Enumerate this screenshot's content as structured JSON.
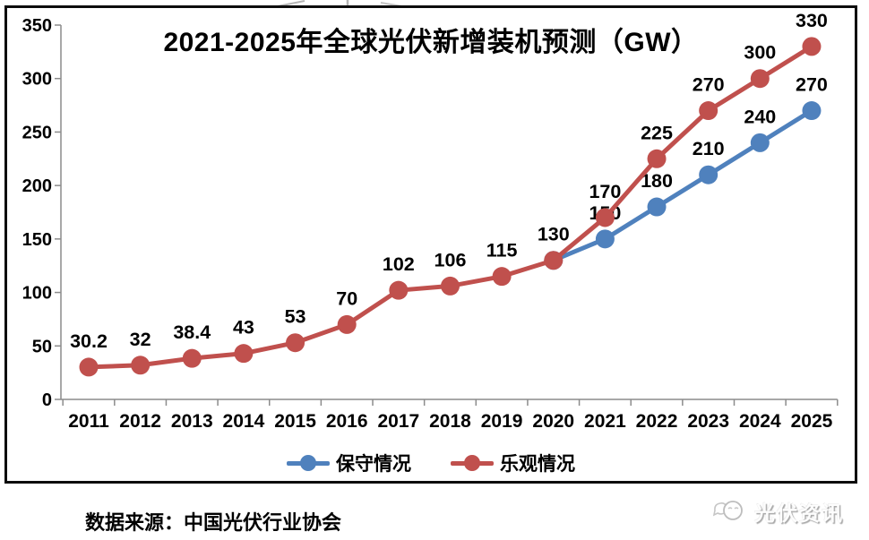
{
  "chart_data": {
    "type": "line",
    "title": "2021-2025年全球光伏新增装机预测（GW）",
    "categories": [
      "2011",
      "2012",
      "2013",
      "2014",
      "2015",
      "2016",
      "2017",
      "2018",
      "2019",
      "2020",
      "2021",
      "2022",
      "2023",
      "2024",
      "2025"
    ],
    "series": [
      {
        "name": "保守情况",
        "color": "#4F81BD",
        "values": [
          null,
          null,
          null,
          null,
          null,
          null,
          null,
          null,
          null,
          130,
          150,
          180,
          210,
          240,
          270
        ],
        "labels": [
          null,
          null,
          null,
          null,
          null,
          null,
          null,
          null,
          null,
          null,
          "150",
          "180",
          "210",
          "240",
          "270"
        ]
      },
      {
        "name": "乐观情况",
        "color": "#C0504D",
        "values": [
          30.2,
          32,
          38.4,
          43,
          53,
          70,
          102,
          106,
          115,
          130,
          170,
          225,
          270,
          300,
          330
        ],
        "labels": [
          "30.2",
          "32",
          "38.4",
          "43",
          "53",
          "70",
          "102",
          "106",
          "115",
          "130",
          "170",
          "225",
          "270",
          "300",
          "330"
        ]
      }
    ],
    "xlabel": "",
    "ylabel": "",
    "ylim": [
      0,
      350
    ],
    "yticks": [
      0,
      50,
      100,
      150,
      200,
      250,
      300,
      350
    ],
    "grid": false,
    "legend_position": "bottom",
    "axis_color": "#8c8c8c",
    "label_color": "#000000"
  },
  "footer": {
    "source_note": "数据来源：中国光伏行业协会",
    "watermark_text": "光伏资讯"
  }
}
